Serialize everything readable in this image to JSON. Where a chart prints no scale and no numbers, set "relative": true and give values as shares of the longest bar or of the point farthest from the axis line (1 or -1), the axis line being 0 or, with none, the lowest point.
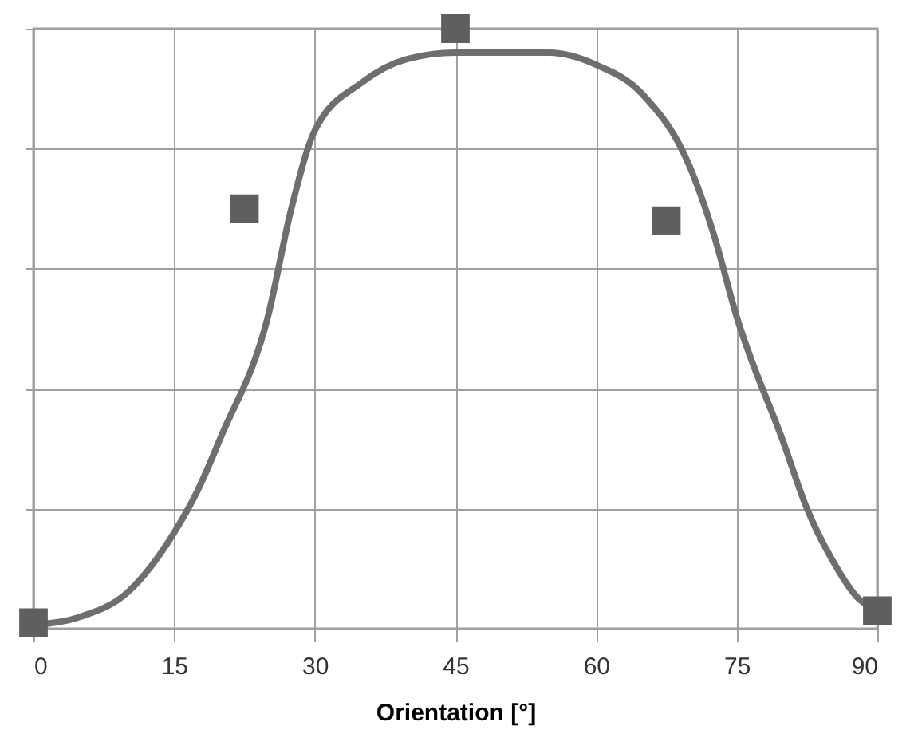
{
  "chart_data": {
    "type": "line",
    "xlabel": "Orientation [°]",
    "relative": true,
    "xlim": [
      0,
      90
    ],
    "xticks": [
      0,
      15,
      30,
      45,
      60,
      75,
      90
    ],
    "grid": true,
    "tick_labels": "x",
    "series": [
      {
        "color": "#6e6e6e",
        "marker": "none",
        "line_style": "solid",
        "x": [
          0,
          5,
          10,
          15,
          17.5,
          20,
          25,
          27.5,
          30,
          35,
          40,
          45,
          50,
          55,
          60,
          65,
          70,
          72.5,
          75,
          80,
          82.5,
          85,
          88,
          90
        ],
        "values": [
          0.006,
          0.02,
          0.06,
          0.16,
          0.23,
          0.32,
          0.52,
          0.7,
          0.83,
          0.91,
          0.95,
          0.96,
          0.96,
          0.96,
          0.94,
          0.89,
          0.77,
          0.66,
          0.52,
          0.31,
          0.2,
          0.12,
          0.05,
          0.03
        ]
      },
      {
        "type": "scatter",
        "color": "#5f5f5f",
        "marker": "square",
        "x": [
          0,
          22.5,
          45,
          67.5,
          90
        ],
        "values": [
          0.01,
          0.7,
          1,
          0.68,
          0.03
        ]
      }
    ]
  }
}
